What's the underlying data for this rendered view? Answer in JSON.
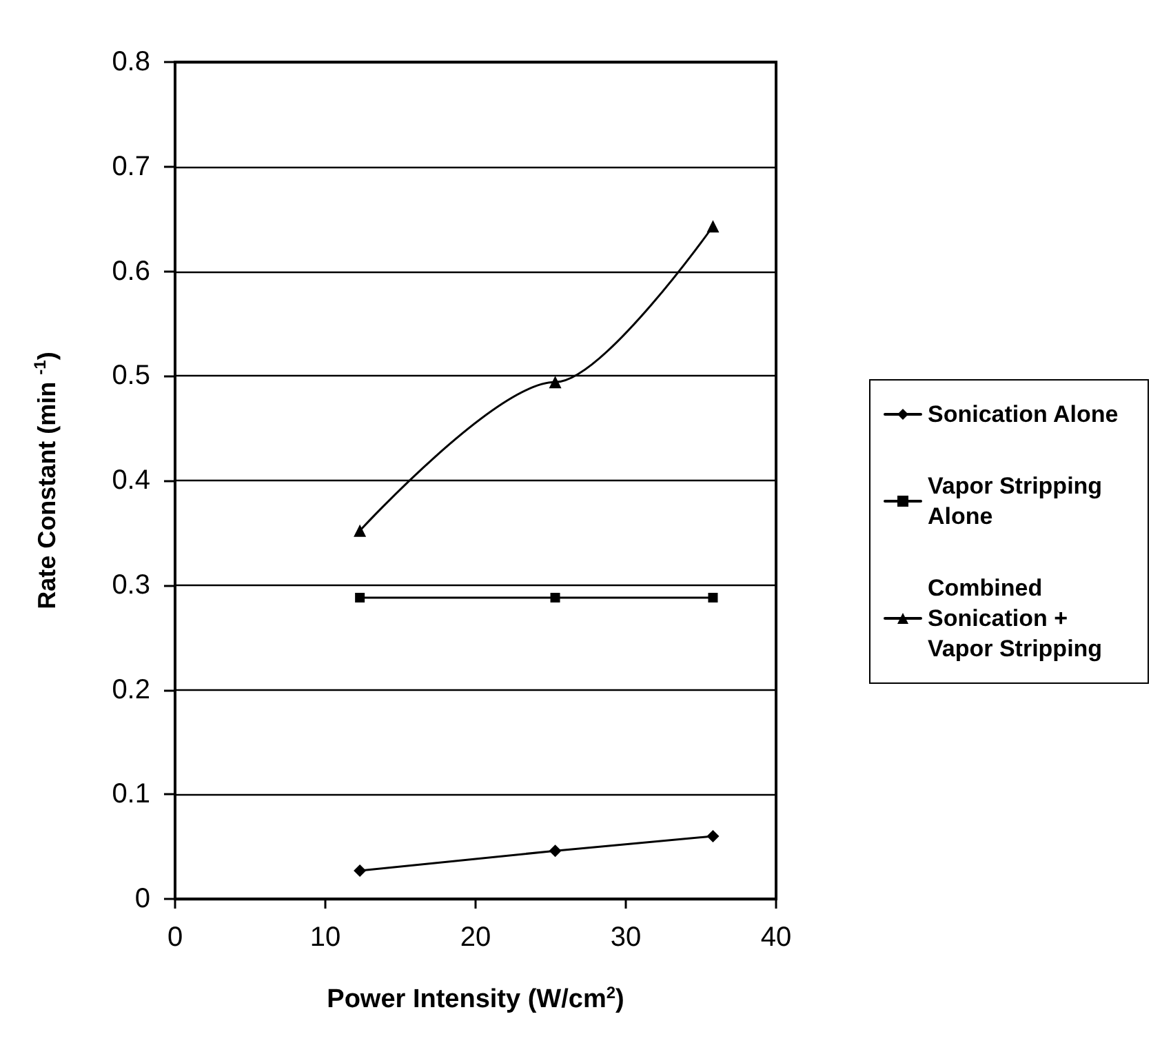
{
  "chart_data": {
    "type": "line",
    "xlabel": "Power Intensity (W/cm$^{2}$)",
    "ylabel": "Rate Constant (min $^{-1}$)",
    "x": [
      12.3,
      25.3,
      35.8
    ],
    "series": [
      {
        "name": "Sonication Alone",
        "color": "#000000",
        "marker": "diamond",
        "values": [
          0.027,
          0.046,
          0.06
        ]
      },
      {
        "name": "Vapor Stripping Alone",
        "color": "#000000",
        "marker": "square",
        "values": [
          0.288,
          0.288,
          0.288
        ]
      },
      {
        "name": "Combined Sonication + Vapor Stripping",
        "color": "#000000",
        "marker": "triangle",
        "values": [
          0.352,
          0.494,
          0.643
        ]
      }
    ],
    "xlim": [
      0,
      40
    ],
    "xticks": [
      0,
      10,
      20,
      30,
      40
    ],
    "ylim": [
      0,
      0.8
    ],
    "yticks": [
      0,
      0.1,
      0.2,
      0.3,
      0.4,
      0.5,
      0.6,
      0.7,
      0.8
    ],
    "grid": "y",
    "legend": "right",
    "line_style": "solid"
  }
}
